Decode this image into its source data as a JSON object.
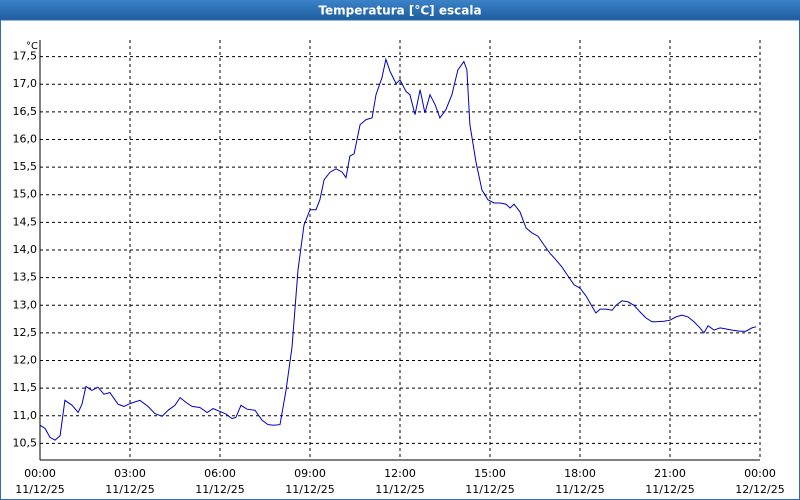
{
  "chart_data": {
    "type": "line",
    "title": "Temperatura [°C] escala",
    "y_unit": "°C",
    "xlim": [
      0,
      24
    ],
    "ylim": [
      10.2,
      17.8
    ],
    "xticks": [
      {
        "value": 0,
        "label": "00:00"
      },
      {
        "value": 3,
        "label": "03:00"
      },
      {
        "value": 6,
        "label": "06:00"
      },
      {
        "value": 9,
        "label": "09:00"
      },
      {
        "value": 12,
        "label": "12:00"
      },
      {
        "value": 15,
        "label": "15:00"
      },
      {
        "value": 18,
        "label": "18:00"
      },
      {
        "value": 21,
        "label": "21:00"
      },
      {
        "value": 24,
        "label": "00:00"
      }
    ],
    "xtick_dates": [
      "11/12/25",
      "11/12/25",
      "11/12/25",
      "11/12/25",
      "11/12/25",
      "11/12/25",
      "11/12/25",
      "11/12/25",
      "12/12/25"
    ],
    "yticks": [
      {
        "value": 10.5,
        "label": "10,5"
      },
      {
        "value": 11,
        "label": "11,0"
      },
      {
        "value": 11.5,
        "label": "11,5"
      },
      {
        "value": 12,
        "label": "12,0"
      },
      {
        "value": 12.5,
        "label": "12,5"
      },
      {
        "value": 13,
        "label": "13,0"
      },
      {
        "value": 13.5,
        "label": "13,5"
      },
      {
        "value": 14,
        "label": "14,0"
      },
      {
        "value": 14.5,
        "label": "14,5"
      },
      {
        "value": 15,
        "label": "15,0"
      },
      {
        "value": 15.5,
        "label": "15,5"
      },
      {
        "value": 16,
        "label": "16,0"
      },
      {
        "value": 16.5,
        "label": "16,5"
      },
      {
        "value": 17,
        "label": "17,0"
      },
      {
        "value": 17.5,
        "label": "17,5"
      }
    ],
    "grid": true,
    "color": "#0000c0",
    "x": [
      0,
      0.17,
      0.33,
      0.5,
      0.67,
      0.83,
      1.07,
      1.27,
      1.4,
      1.53,
      1.73,
      1.93,
      2.13,
      2.33,
      2.6,
      2.8,
      3.0,
      3.33,
      3.6,
      3.83,
      4.07,
      4.27,
      4.5,
      4.67,
      4.87,
      5.07,
      5.33,
      5.57,
      5.77,
      6.0,
      6.2,
      6.4,
      6.53,
      6.7,
      6.9,
      7.17,
      7.4,
      7.6,
      7.8,
      8.0,
      8.2,
      8.4,
      8.6,
      8.8,
      9.0,
      9.2,
      9.33,
      9.47,
      9.67,
      9.87,
      10.07,
      10.2,
      10.33,
      10.47,
      10.67,
      10.87,
      11.07,
      11.2,
      11.4,
      11.53,
      11.67,
      11.87,
      12.0,
      12.2,
      12.33,
      12.5,
      12.67,
      12.83,
      13.0,
      13.17,
      13.33,
      13.53,
      13.73,
      13.93,
      14.13,
      14.23,
      14.33,
      14.53,
      14.73,
      14.93,
      15.13,
      15.33,
      15.53,
      15.67,
      15.8,
      16.0,
      16.2,
      16.4,
      16.6,
      16.8,
      17.0,
      17.2,
      17.4,
      17.6,
      17.8,
      18.0,
      18.2,
      18.4,
      18.53,
      18.67,
      18.87,
      19.07,
      19.2,
      19.4,
      19.6,
      19.8,
      20.0,
      20.2,
      20.4,
      20.53,
      20.8,
      21.0,
      21.2,
      21.4,
      21.6,
      21.8,
      22.0,
      22.13,
      22.27,
      22.47,
      22.67,
      22.87,
      23.07,
      23.33,
      23.53,
      23.73,
      23.87
    ],
    "values": [
      10.83,
      10.77,
      10.61,
      10.56,
      10.64,
      11.28,
      11.19,
      11.06,
      11.21,
      11.53,
      11.46,
      11.52,
      11.39,
      11.42,
      11.21,
      11.17,
      11.22,
      11.28,
      11.17,
      11.04,
      10.99,
      11.1,
      11.19,
      11.33,
      11.24,
      11.17,
      11.15,
      11.06,
      11.13,
      11.08,
      11.03,
      10.95,
      10.97,
      11.19,
      11.12,
      11.1,
      10.92,
      10.84,
      10.83,
      10.84,
      11.46,
      12.24,
      13.64,
      14.45,
      14.73,
      14.73,
      14.91,
      15.27,
      15.41,
      15.47,
      15.41,
      15.31,
      15.7,
      15.74,
      16.27,
      16.36,
      16.39,
      16.81,
      17.12,
      17.45,
      17.23,
      17.01,
      17.08,
      16.87,
      16.81,
      16.45,
      16.9,
      16.48,
      16.81,
      16.63,
      16.39,
      16.54,
      16.81,
      17.26,
      17.41,
      17.26,
      16.27,
      15.6,
      15.09,
      14.91,
      14.85,
      14.85,
      14.83,
      14.76,
      14.83,
      14.69,
      14.4,
      14.31,
      14.25,
      14.09,
      13.94,
      13.82,
      13.69,
      13.53,
      13.37,
      13.31,
      13.17,
      12.98,
      12.86,
      12.93,
      12.93,
      12.91,
      13.0,
      13.08,
      13.06,
      13.0,
      12.88,
      12.77,
      12.7,
      12.7,
      12.71,
      12.73,
      12.79,
      12.82,
      12.79,
      12.7,
      12.59,
      12.5,
      12.63,
      12.55,
      12.59,
      12.57,
      12.55,
      12.53,
      12.53,
      12.59,
      12.61
    ]
  }
}
